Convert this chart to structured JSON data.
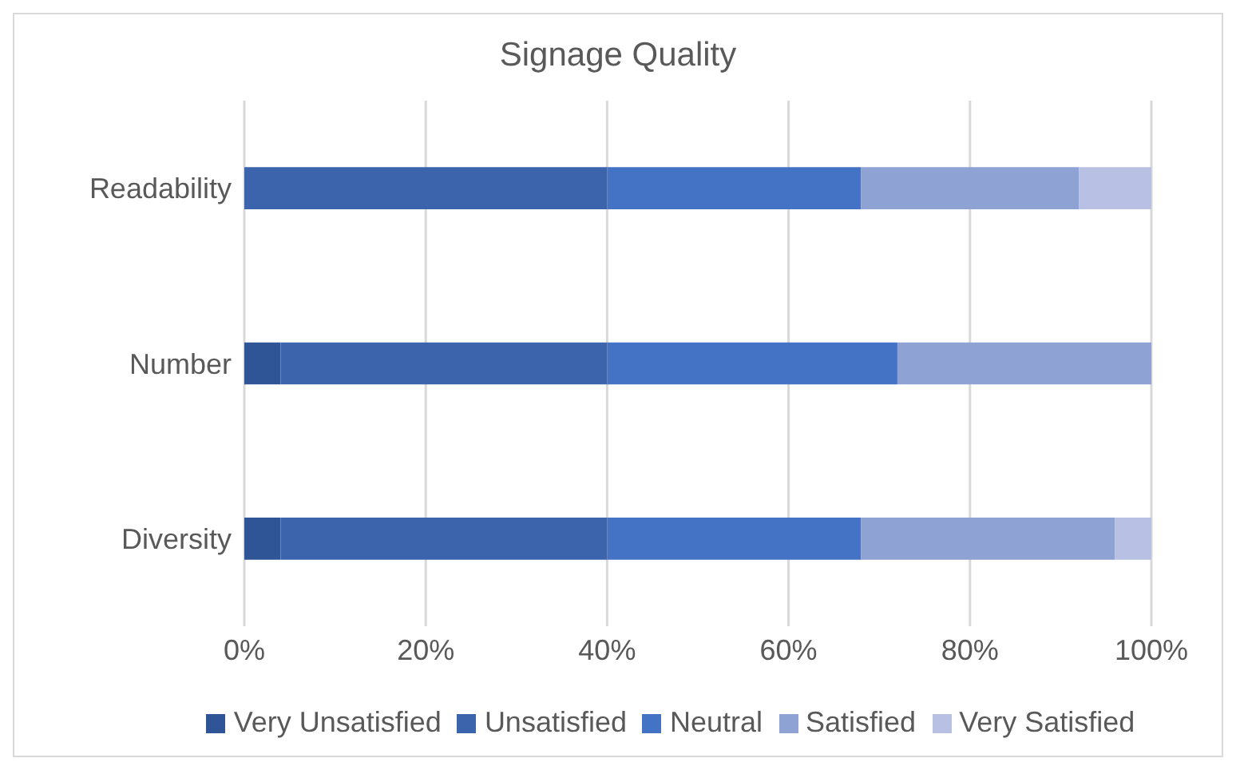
{
  "chart_data": {
    "type": "bar",
    "orientation": "horizontal",
    "stacked": true,
    "title": "Signage Quality",
    "categories": [
      "Readability",
      "Number",
      "Diversity"
    ],
    "series": [
      {
        "name": "Very Unsatisfied",
        "color": "#2f5597",
        "values": [
          0,
          4,
          4
        ]
      },
      {
        "name": "Unsatisfied",
        "color": "#3c64ad",
        "values": [
          40,
          36,
          36
        ]
      },
      {
        "name": "Neutral",
        "color": "#4472c4",
        "values": [
          28,
          32,
          28
        ]
      },
      {
        "name": "Satisfied",
        "color": "#8fa2d4",
        "values": [
          24,
          28,
          28
        ]
      },
      {
        "name": "Very Satisfied",
        "color": "#b8c1e3",
        "values": [
          8,
          0,
          4
        ]
      }
    ],
    "xlim": [
      0,
      100
    ],
    "xticks": [
      {
        "value": 0,
        "label": "0%"
      },
      {
        "value": 20,
        "label": "20%"
      },
      {
        "value": 40,
        "label": "40%"
      },
      {
        "value": 60,
        "label": "60%"
      },
      {
        "value": 80,
        "label": "80%"
      },
      {
        "value": 100,
        "label": "100%"
      }
    ],
    "grid": "x",
    "legend": "bottom"
  }
}
